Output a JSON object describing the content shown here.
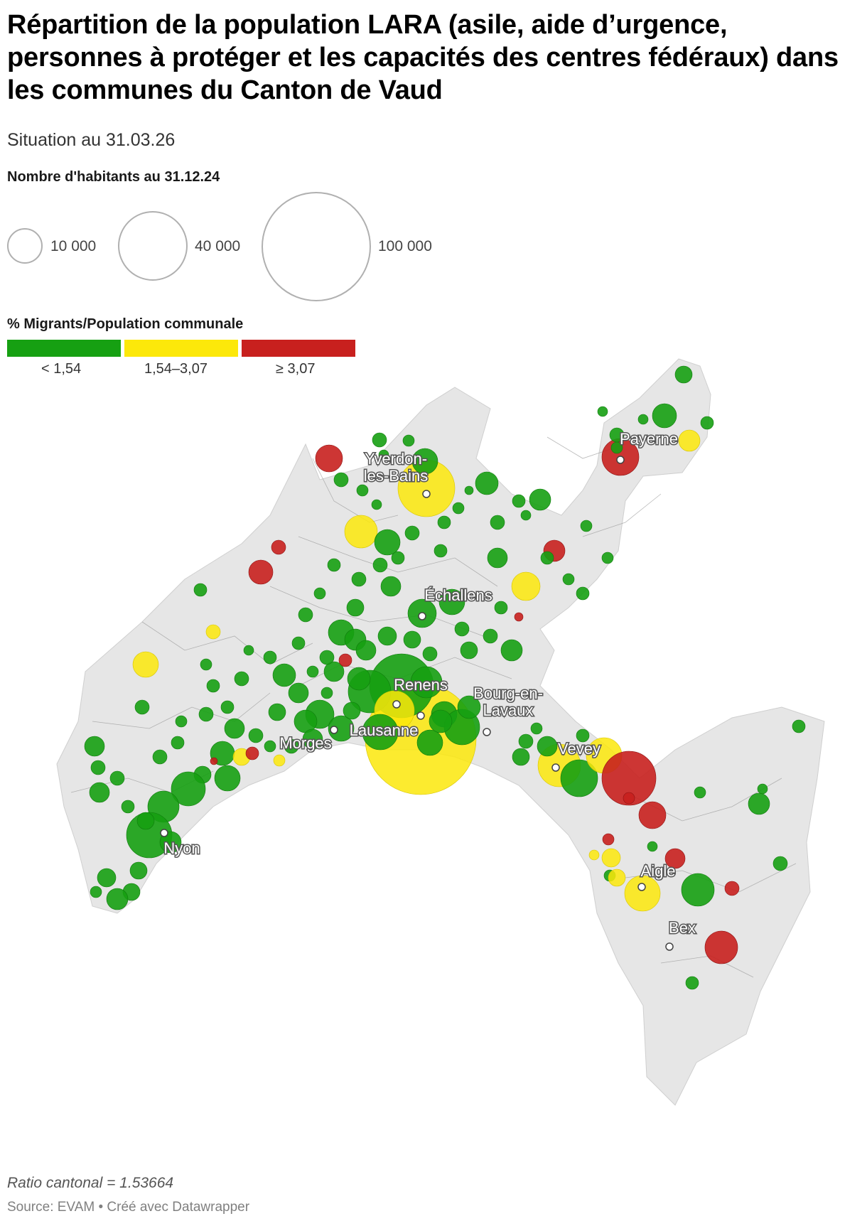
{
  "title": "Répartition de la population LARA (asile, aide d’urgence, personnes à protéger et les capacités des centres fédéraux) dans les communes du Canton de Vaud",
  "subtitle": "Situation au 31.03.26",
  "size_legend": {
    "title": "Nombre d'habitants au 31.12.24",
    "items": [
      {
        "label": "10 000",
        "value": 10000
      },
      {
        "label": "40 000",
        "value": 40000
      },
      {
        "label": "100 000",
        "value": 100000
      }
    ]
  },
  "color_legend": {
    "title": "% Migrants/Population communale",
    "bins": [
      {
        "label": "< 1,54",
        "color": "#16a012"
      },
      {
        "label": "1,54–3,07",
        "color": "#fce80a"
      },
      {
        "label": "≥ 3,07",
        "color": "#c8201e"
      }
    ]
  },
  "colors": {
    "green": "#16a012",
    "yellow": "#fce80a",
    "red": "#c8201e",
    "land": "#e6e6e6",
    "border": "#9a9a9a"
  },
  "cities": [
    {
      "name": "Yverdon-les-Bains",
      "line1": "Yverdon-",
      "line2": "les-Bains"
    },
    {
      "name": "Payerne"
    },
    {
      "name": "Échallens"
    },
    {
      "name": "Renens"
    },
    {
      "name": "Bourg-en-Lavaux",
      "line1": "Bourg-en-",
      "line2": "Lavaux"
    },
    {
      "name": "Lausanne"
    },
    {
      "name": "Morges"
    },
    {
      "name": "Vevey"
    },
    {
      "name": "Nyon"
    },
    {
      "name": "Aigle"
    },
    {
      "name": "Bex"
    }
  ],
  "note": "Ratio cantonal = 1.53664",
  "source": "Source: EVAM • Créé avec Datawrapper"
}
